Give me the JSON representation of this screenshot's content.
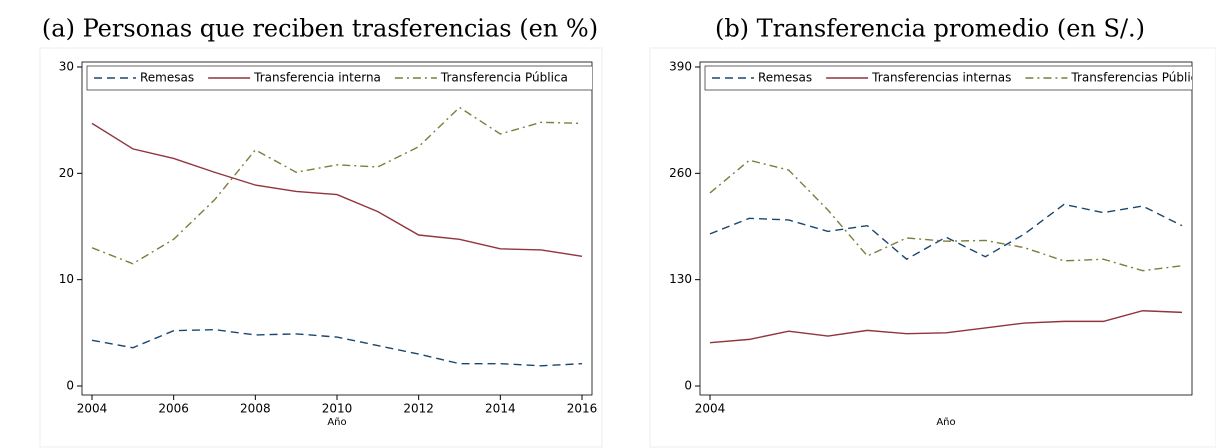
{
  "chart_data": [
    {
      "type": "line",
      "title": "(a) Personas que reciben trasferencias (en %)",
      "xlabel": "Año",
      "x": [
        2004,
        2005,
        2006,
        2007,
        2008,
        2009,
        2010,
        2011,
        2012,
        2013,
        2014,
        2015,
        2016
      ],
      "xlim": [
        2004,
        2016
      ],
      "xticks": [
        2004,
        2006,
        2008,
        2010,
        2012,
        2014,
        2016
      ],
      "ylim": [
        0,
        30
      ],
      "yticks": [
        0,
        10,
        20,
        30
      ],
      "legend": "top",
      "series": [
        {
          "name": "Remesas",
          "color": "#1a476f",
          "dash": "dashed",
          "values": [
            4.3,
            3.6,
            5.2,
            5.3,
            4.8,
            4.9,
            4.6,
            3.8,
            3.0,
            2.1,
            2.1,
            1.9,
            2.1
          ]
        },
        {
          "name": "Transferencia interna",
          "color": "#90353b",
          "dash": "solid",
          "values": [
            24.7,
            22.3,
            21.4,
            20.1,
            18.9,
            18.3,
            18.0,
            16.4,
            14.2,
            13.8,
            12.9,
            12.8,
            12.2
          ]
        },
        {
          "name": "Transferencia Pública",
          "color": "#7d7d3c",
          "dash": "dashdot",
          "values": [
            13.0,
            11.5,
            13.8,
            17.5,
            22.2,
            20.1,
            20.8,
            20.6,
            22.5,
            26.2,
            23.7,
            24.8,
            24.7
          ]
        }
      ]
    },
    {
      "type": "line",
      "title": "(b) Transferencia promedio (en S/.)",
      "xlabel": "Año",
      "x": [
        2004,
        2005,
        2006,
        2007,
        2008,
        2009,
        2010,
        2011,
        2012,
        2013,
        2014,
        2015,
        2016
      ],
      "xlim": [
        2004,
        2016
      ],
      "xticks": [
        2004
      ],
      "ylim": [
        0,
        390
      ],
      "yticks": [
        0,
        130,
        260,
        390
      ],
      "legend": "top",
      "series": [
        {
          "name": "Remesas",
          "color": "#1a476f",
          "dash": "dashed",
          "values": [
            186,
            205,
            203,
            189,
            196,
            155,
            182,
            158,
            186,
            222,
            212,
            220,
            196
          ]
        },
        {
          "name": "Transferencias internas",
          "color": "#90353b",
          "dash": "solid",
          "values": [
            53,
            57,
            67,
            61,
            68,
            64,
            65,
            71,
            77,
            79,
            79,
            92,
            90
          ]
        },
        {
          "name": "Transferencias Públicas",
          "color": "#7d7d3c",
          "dash": "dashdot",
          "values": [
            236,
            276,
            264,
            215,
            159,
            181,
            177,
            178,
            169,
            153,
            155,
            141,
            147
          ]
        }
      ]
    }
  ]
}
